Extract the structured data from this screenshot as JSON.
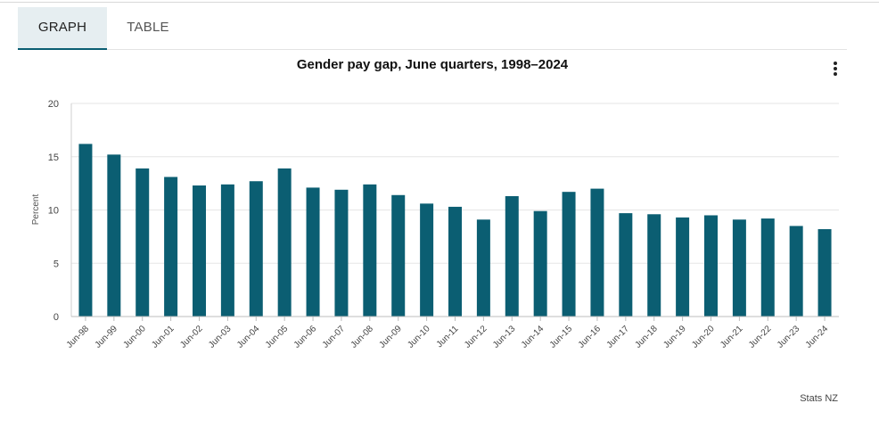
{
  "tabs": {
    "graph": "GRAPH",
    "table": "TABLE"
  },
  "menu_icon": "more-vertical-icon",
  "credit": "Stats NZ",
  "colors": {
    "bar": "#0b5e72",
    "grid": "#e6e6e6",
    "tab_active_bg": "#e6eef1"
  },
  "chart_data": {
    "type": "bar",
    "title": "Gender pay gap, June quarters, 1998–2024",
    "xlabel": "",
    "ylabel": "Percent",
    "ylim": [
      0,
      20
    ],
    "yticks": [
      0,
      5,
      10,
      15,
      20
    ],
    "grid": true,
    "legend": "none",
    "categories": [
      "Jun-98",
      "Jun-99",
      "Jun-00",
      "Jun-01",
      "Jun-02",
      "Jun-03",
      "Jun-04",
      "Jun-05",
      "Jun-06",
      "Jun-07",
      "Jun-08",
      "Jun-09",
      "Jun-10",
      "Jun-11",
      "Jun-12",
      "Jun-13",
      "Jun-14",
      "Jun-15",
      "Jun-16",
      "Jun-17",
      "Jun-18",
      "Jun-19",
      "Jun-20",
      "Jun-21",
      "Jun-22",
      "Jun-23",
      "Jun-24"
    ],
    "values": [
      16.2,
      15.2,
      13.9,
      13.1,
      12.3,
      12.4,
      12.7,
      13.9,
      12.1,
      11.9,
      12.4,
      11.4,
      10.6,
      10.3,
      9.1,
      11.3,
      9.9,
      11.7,
      12.0,
      9.7,
      9.6,
      9.3,
      9.5,
      9.1,
      9.2,
      8.5,
      8.2
    ]
  }
}
